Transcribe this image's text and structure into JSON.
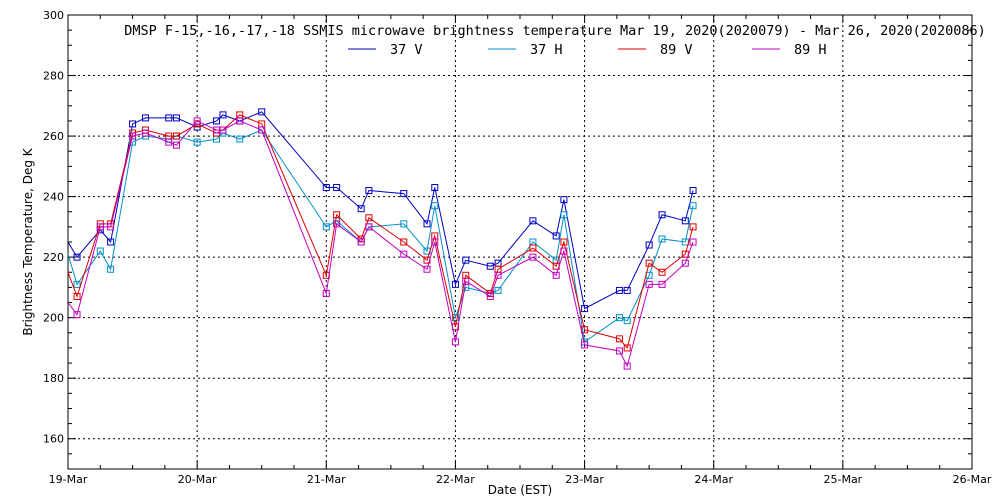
{
  "chart_data": {
    "type": "line",
    "title": "DMSP F-15,-16,-17,-18 SSMIS microwave brightness temperature Mar 19, 2020(2020079) - Mar 26, 2020(2020086)",
    "xlabel": "Date (EST)",
    "ylabel": "Brightness Temperature, Deg K",
    "xlim": [
      0,
      7
    ],
    "ylim": [
      150,
      300
    ],
    "x_ticks": [
      0,
      1,
      2,
      3,
      4,
      5,
      6,
      7
    ],
    "x_tick_labels": [
      "19-Mar",
      "20-Mar",
      "21-Mar",
      "22-Mar",
      "23-Mar",
      "24-Mar",
      "25-Mar",
      "26-Mar"
    ],
    "y_ticks": [
      160,
      180,
      200,
      220,
      240,
      260,
      280,
      300
    ],
    "grid": true,
    "legend_position": "top",
    "series": [
      {
        "name": "37 V",
        "color": "#0000c0",
        "x": [
          0.07,
          0.25,
          0.33,
          0.5,
          0.6,
          0.78,
          0.84,
          1.0,
          1.15,
          1.2,
          1.33,
          1.5,
          2.0,
          2.08,
          2.27,
          2.33,
          2.6,
          2.78,
          2.84,
          3.0,
          3.08,
          3.27,
          3.33,
          3.6,
          3.78,
          3.84,
          4.0,
          4.27,
          4.33,
          4.5,
          4.6,
          4.78,
          4.84
        ],
        "y": [
          220,
          229,
          225,
          264,
          266,
          266,
          266,
          263,
          265,
          267,
          265,
          268,
          243,
          243,
          236,
          242,
          241,
          231,
          243,
          211,
          219,
          217,
          218,
          232,
          227,
          239,
          203,
          209,
          209,
          224,
          234,
          232,
          242
        ]
      },
      {
        "name": "37 H",
        "color": "#0090c8",
        "x": [
          0.07,
          0.25,
          0.33,
          0.5,
          0.6,
          0.78,
          0.84,
          1.0,
          1.15,
          1.2,
          1.33,
          1.5,
          2.0,
          2.08,
          2.27,
          2.33,
          2.6,
          2.78,
          2.84,
          3.0,
          3.08,
          3.27,
          3.33,
          3.6,
          3.78,
          3.84,
          4.0,
          4.27,
          4.33,
          4.5,
          4.6,
          4.78,
          4.84
        ],
        "y": [
          211,
          222,
          216,
          258,
          260,
          259,
          260,
          258,
          259,
          261,
          259,
          262,
          230,
          232,
          225,
          230,
          231,
          222,
          237,
          200,
          210,
          208,
          209,
          225,
          219,
          234,
          192,
          200,
          199,
          214,
          226,
          225,
          237
        ]
      },
      {
        "name": "89 V",
        "color": "#dc0000",
        "x": [
          0.07,
          0.25,
          0.33,
          0.5,
          0.6,
          0.78,
          0.84,
          1.0,
          1.15,
          1.2,
          1.33,
          1.5,
          2.0,
          2.08,
          2.27,
          2.33,
          2.6,
          2.78,
          2.84,
          3.0,
          3.08,
          3.27,
          3.33,
          3.6,
          3.78,
          3.84,
          4.0,
          4.27,
          4.33,
          4.5,
          4.6,
          4.78,
          4.84
        ],
        "y": [
          207,
          231,
          231,
          261,
          262,
          260,
          260,
          264,
          261,
          262,
          267,
          264,
          214,
          234,
          226,
          233,
          225,
          219,
          227,
          197,
          214,
          208,
          216,
          223,
          217,
          225,
          196,
          193,
          190,
          218,
          215,
          221,
          230
        ]
      },
      {
        "name": "89 H",
        "color": "#c000c0",
        "x": [
          0.07,
          0.25,
          0.33,
          0.5,
          0.6,
          0.78,
          0.84,
          1.0,
          1.15,
          1.2,
          1.33,
          1.5,
          2.0,
          2.08,
          2.27,
          2.33,
          2.6,
          2.78,
          2.84,
          3.0,
          3.08,
          3.27,
          3.33,
          3.6,
          3.78,
          3.84,
          4.0,
          4.27,
          4.33,
          4.5,
          4.6,
          4.78,
          4.84
        ],
        "y": [
          201,
          230,
          230,
          260,
          261,
          258,
          257,
          265,
          262,
          262,
          265,
          262,
          208,
          231,
          225,
          230,
          221,
          216,
          225,
          192,
          212,
          207,
          214,
          220,
          214,
          222,
          191,
          189,
          184,
          211,
          211,
          218,
          225
        ]
      }
    ]
  }
}
